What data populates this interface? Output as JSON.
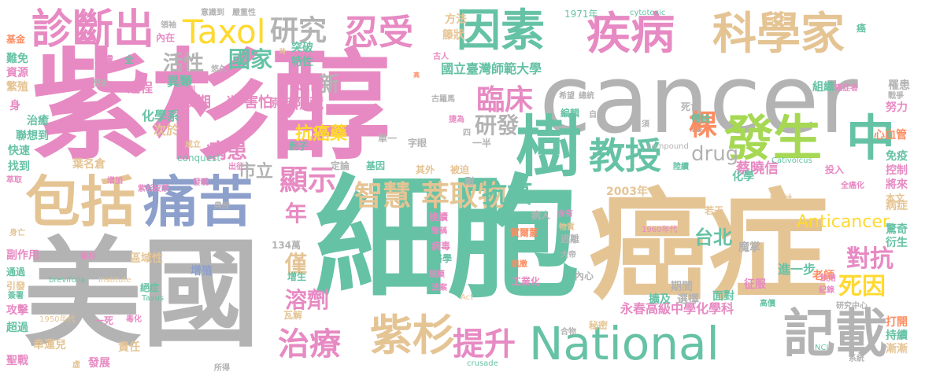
{
  "palette": {
    "pink": "#e78ac3",
    "gray": "#b3b3b3",
    "teal": "#66c2a5",
    "tan": "#e5c494",
    "blue": "#8da0cb",
    "orange": "#fc8d62",
    "yellow": "#ffd92f",
    "lime": "#a6d854"
  },
  "words": [
    {
      "text": "癌症",
      "color": "tan"
    },
    {
      "text": "細胞",
      "color": "teal"
    },
    {
      "text": "紫杉醇",
      "color": "pink"
    },
    {
      "text": "美國",
      "color": "gray"
    },
    {
      "text": "cancer",
      "color": "gray"
    },
    {
      "text": "因素",
      "color": "teal"
    },
    {
      "text": "疾病",
      "color": "pink"
    },
    {
      "text": "科學家",
      "color": "tan"
    },
    {
      "text": "National",
      "color": "teal"
    },
    {
      "text": "記載",
      "color": "gray"
    },
    {
      "text": "樹",
      "color": "teal"
    },
    {
      "text": "包括",
      "color": "tan"
    },
    {
      "text": "痛苦",
      "color": "blue"
    },
    {
      "text": "發生",
      "color": "lime"
    },
    {
      "text": "中",
      "color": "teal"
    },
    {
      "text": "紫杉",
      "color": "tan"
    },
    {
      "text": "診斷出",
      "color": "pink"
    },
    {
      "text": "Taxol",
      "color": "yellow"
    },
    {
      "text": "忍受",
      "color": "pink"
    },
    {
      "text": "研究",
      "color": "gray"
    },
    {
      "text": "教授",
      "color": "teal"
    },
    {
      "text": "治療",
      "color": "pink"
    },
    {
      "text": "提升",
      "color": "pink"
    },
    {
      "text": "臨床",
      "color": "pink"
    },
    {
      "text": "萃取物",
      "color": "tan"
    },
    {
      "text": "智慧",
      "color": "tan"
    },
    {
      "text": "顯示",
      "color": "pink"
    },
    {
      "text": "死因",
      "color": "yellow"
    },
    {
      "text": "對抗",
      "color": "pink"
    },
    {
      "text": "抗癌",
      "color": "teal"
    },
    {
      "text": "國家",
      "color": "teal"
    },
    {
      "text": "活性",
      "color": "gray"
    },
    {
      "text": "新",
      "color": "gray"
    },
    {
      "text": "研發",
      "color": "gray"
    },
    {
      "text": "棵",
      "color": "orange"
    },
    {
      "text": "drug",
      "color": "gray"
    },
    {
      "text": "年",
      "color": "pink"
    },
    {
      "text": "僅",
      "color": "tan"
    },
    {
      "text": "溶劑",
      "color": "pink"
    },
    {
      "text": "病患",
      "color": "pink"
    },
    {
      "text": "抗癌藥",
      "color": "yellow"
    },
    {
      "text": "市立",
      "color": "gray"
    },
    {
      "text": "台北",
      "color": "teal"
    },
    {
      "text": "Anticancer",
      "color": "yellow"
    },
    {
      "text": "遺傳",
      "color": "pink"
    },
    {
      "text": "害怕",
      "color": "pink"
    },
    {
      "text": "隱藏",
      "color": "pink"
    },
    {
      "text": "長期",
      "color": "pink"
    },
    {
      "text": "異類",
      "color": "teal"
    },
    {
      "text": "化學系",
      "color": "teal"
    },
    {
      "text": "次於",
      "color": "tan"
    },
    {
      "text": "過程",
      "color": "pink"
    },
    {
      "text": "尚",
      "color": "pink"
    },
    {
      "text": "原因",
      "color": "pink"
    },
    {
      "text": "特性",
      "color": "teal"
    },
    {
      "text": "突破",
      "color": "teal"
    },
    {
      "text": "國立臺灣師範大學",
      "color": "teal"
    },
    {
      "text": "永春高級中學化學科",
      "color": "pink"
    },
    {
      "text": "2003年",
      "color": "tan"
    },
    {
      "text": "蔡曉信",
      "color": "pink"
    },
    {
      "text": "化學",
      "color": "teal"
    },
    {
      "text": "輻射",
      "color": "tan"
    },
    {
      "text": "魔掌",
      "color": "gray"
    },
    {
      "text": "進一步",
      "color": "teal"
    },
    {
      "text": "老師",
      "color": "orange"
    },
    {
      "text": "期間",
      "color": "gray"
    },
    {
      "text": "選擇",
      "color": "gray"
    },
    {
      "text": "擴及",
      "color": "teal"
    },
    {
      "text": "面對",
      "color": "teal"
    },
    {
      "text": "征服",
      "color": "pink"
    },
    {
      "text": "驚奇",
      "color": "teal"
    },
    {
      "text": "衍生",
      "color": "teal"
    },
    {
      "text": "病症",
      "color": "tan"
    },
    {
      "text": "持續",
      "color": "teal"
    },
    {
      "text": "漸漸",
      "color": "tan"
    },
    {
      "text": "打開",
      "color": "orange"
    },
    {
      "text": "控制",
      "color": "pink"
    },
    {
      "text": "將來",
      "color": "pink"
    },
    {
      "text": "本文",
      "color": "tan"
    },
    {
      "text": "免疫",
      "color": "teal"
    },
    {
      "text": "心血管",
      "color": "orange"
    },
    {
      "text": "努力",
      "color": "pink"
    },
    {
      "text": "罹患",
      "color": "gray"
    },
    {
      "text": "戰爭",
      "color": "gray"
    },
    {
      "text": "癌症者",
      "color": "pink"
    },
    {
      "text": "組織",
      "color": "teal"
    },
    {
      "text": "古人",
      "color": "pink"
    },
    {
      "text": "籐狀",
      "color": "tan"
    },
    {
      "text": "方法",
      "color": "tan"
    },
    {
      "text": "1971年",
      "color": "teal"
    },
    {
      "text": "cytotoxic",
      "color": "teal"
    },
    {
      "text": "癌",
      "color": "teal"
    },
    {
      "text": "意識到",
      "color": "gray"
    },
    {
      "text": "嚴重性",
      "color": "gray"
    },
    {
      "text": "領袖",
      "color": "gray"
    },
    {
      "text": "內在",
      "color": "pink"
    },
    {
      "text": "基金",
      "color": "orange"
    },
    {
      "text": "難免",
      "color": "teal"
    },
    {
      "text": "皮膚",
      "color": "pink"
    },
    {
      "text": "全",
      "color": "teal"
    },
    {
      "text": "資源",
      "color": "pink"
    },
    {
      "text": "繁殖",
      "color": "tan"
    },
    {
      "text": "歷史",
      "color": "gray"
    },
    {
      "text": "計劃",
      "color": "pink"
    },
    {
      "text": "悠久",
      "color": "gray"
    },
    {
      "text": "身",
      "color": "pink"
    },
    {
      "text": "治癒",
      "color": "teal"
    },
    {
      "text": "聯想到",
      "color": "teal"
    },
    {
      "text": "快速",
      "color": "teal"
    },
    {
      "text": "找到",
      "color": "teal"
    },
    {
      "text": "萃取",
      "color": "pink"
    },
    {
      "text": "葉名倉",
      "color": "tan"
    },
    {
      "text": "增加",
      "color": "pink"
    },
    {
      "text": "紫杉皮茶",
      "color": "pink"
    },
    {
      "text": "發現",
      "color": "pink"
    },
    {
      "text": "出征",
      "color": "pink"
    },
    {
      "text": "conquest",
      "color": "teal"
    },
    {
      "text": "成立",
      "color": "tan"
    },
    {
      "text": "例子",
      "color": "teal"
    },
    {
      "text": "定論",
      "color": "gray"
    },
    {
      "text": "基因",
      "color": "teal"
    },
    {
      "text": "其外",
      "color": "tan"
    },
    {
      "text": "被迫",
      "color": "tan"
    },
    {
      "text": "剛",
      "color": "gray"
    },
    {
      "text": "單一",
      "color": "gray"
    },
    {
      "text": "字眼",
      "color": "gray"
    },
    {
      "text": "一半",
      "color": "gray"
    },
    {
      "text": "四",
      "color": "gray"
    },
    {
      "text": "捷為",
      "color": "pink"
    },
    {
      "text": "古羅馬",
      "color": "gray"
    },
    {
      "text": "希望",
      "color": "gray"
    },
    {
      "text": "總統",
      "color": "gray"
    },
    {
      "text": "編輯",
      "color": "teal"
    },
    {
      "text": "自發",
      "color": "gray"
    },
    {
      "text": "死亡",
      "color": "gray"
    },
    {
      "text": "帶給",
      "color": "teal"
    },
    {
      "text": "能力",
      "color": "orange"
    },
    {
      "text": "須",
      "color": "gray"
    },
    {
      "text": "compound",
      "color": "gray"
    },
    {
      "text": "Cativolcus",
      "color": "teal"
    },
    {
      "text": "陸續",
      "color": "teal"
    },
    {
      "text": "投入",
      "color": "pink"
    },
    {
      "text": "全癌化",
      "color": "pink"
    },
    {
      "text": "若干",
      "color": "tan"
    },
    {
      "text": "1960年代",
      "color": "pink"
    },
    {
      "text": "賀爾蒙",
      "color": "orange"
    },
    {
      "text": "病人",
      "color": "gray"
    },
    {
      "text": "含有",
      "color": "pink"
    },
    {
      "text": "物質",
      "color": "tan"
    },
    {
      "text": "逃離",
      "color": "gray"
    },
    {
      "text": "大帝",
      "color": "gray"
    },
    {
      "text": "內心",
      "color": "gray"
    },
    {
      "text": "後續",
      "color": "pink"
    },
    {
      "text": "聲稱",
      "color": "pink"
    },
    {
      "text": "病毒",
      "color": "pink"
    },
    {
      "text": "醫學",
      "color": "teal"
    },
    {
      "text": "規模",
      "color": "pink"
    },
    {
      "text": "凱撒",
      "color": "orange"
    },
    {
      "text": "工業化",
      "color": "pink"
    },
    {
      "text": "法案",
      "color": "pink"
    },
    {
      "text": "Act",
      "color": "tan"
    },
    {
      "text": "134萬",
      "color": "gray"
    },
    {
      "text": "增生",
      "color": "teal"
    },
    {
      "text": "瓦解",
      "color": "tan"
    },
    {
      "text": "秘密",
      "color": "tan"
    },
    {
      "text": "合物",
      "color": "gray"
    },
    {
      "text": "crusade",
      "color": "teal"
    },
    {
      "text": "所得",
      "color": "gray"
    },
    {
      "text": "研究中心",
      "color": "gray"
    },
    {
      "text": "系統",
      "color": "gray"
    },
    {
      "text": "NCI",
      "color": "teal"
    },
    {
      "text": "高價",
      "color": "teal"
    },
    {
      "text": "紀錄",
      "color": "pink"
    },
    {
      "text": "飲用",
      "color": "pink"
    },
    {
      "text": "身亡",
      "color": "tan"
    },
    {
      "text": "副作用",
      "color": "pink"
    },
    {
      "text": "紫杉",
      "color": "pink"
    },
    {
      "text": "區域性",
      "color": "tan"
    },
    {
      "text": "通過",
      "color": "teal"
    },
    {
      "text": "引發",
      "color": "tan"
    },
    {
      "text": "簽署",
      "color": "teal"
    },
    {
      "text": "攻擊",
      "color": "pink"
    },
    {
      "text": "超過",
      "color": "teal"
    },
    {
      "text": "幸運兒",
      "color": "tan"
    },
    {
      "text": "聖戰",
      "color": "pink"
    },
    {
      "text": "虛",
      "color": "tan"
    },
    {
      "text": "發展",
      "color": "pink"
    },
    {
      "text": "責任",
      "color": "tan"
    },
    {
      "text": "1950年代",
      "color": "tan"
    },
    {
      "text": "一死",
      "color": "pink"
    },
    {
      "text": "毒化",
      "color": "pink"
    },
    {
      "text": "Taxus",
      "color": "teal"
    },
    {
      "text": "brevifolia",
      "color": "teal"
    },
    {
      "text": "Institute",
      "color": "tan"
    },
    {
      "text": "絕症",
      "color": "teal"
    },
    {
      "text": "增殖",
      "color": "blue"
    },
    {
      "text": "典故",
      "color": "gray"
    },
    {
      "text": "時",
      "color": "tan"
    },
    {
      "text": "高",
      "color": "orange"
    },
    {
      "text": "a",
      "color": "gray"
    }
  ]
}
